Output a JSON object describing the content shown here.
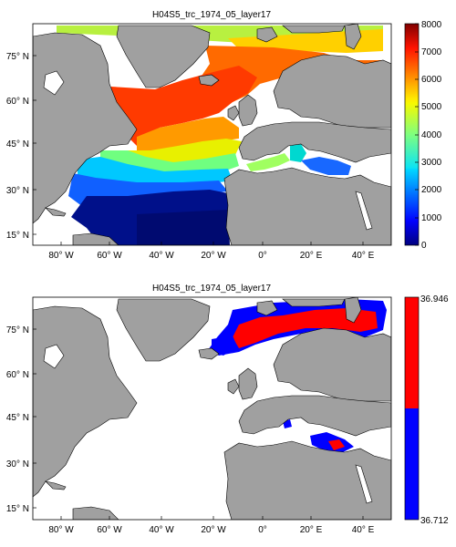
{
  "figure": {
    "background": "#ffffff",
    "land_color": "#a0a0a0",
    "ocean_color": "#ffffff"
  },
  "chart_data": [
    {
      "type": "heatmap",
      "title": "H04S5_trc_1974_05_layer17",
      "xlabel": "",
      "ylabel": "",
      "x_ticks": [
        "80° W",
        "60° W",
        "40° W",
        "20° W",
        "0°",
        "20° E",
        "40° E"
      ],
      "y_ticks": [
        "15° N",
        "30° N",
        "45° N",
        "60° N",
        "75° N"
      ],
      "colorbar": {
        "colormap": "jet",
        "range": [
          0,
          8000
        ],
        "ticks": [
          "0",
          "1000",
          "2000",
          "3000",
          "4000",
          "5000",
          "6000",
          "7000",
          "8000"
        ]
      },
      "fields": [
        {
          "region": "subtropical North Atlantic (10–30° N, 70–15° W)",
          "value_range": [
            0,
            800
          ]
        },
        {
          "region": "North Atlantic 35–45° N",
          "value_range": [
            1000,
            2500
          ]
        },
        {
          "region": "subpolar North Atlantic / Nordic Seas (50–75° N)",
          "value_range": [
            3500,
            5000
          ]
        },
        {
          "region": "Barents Sea / Arctic (75–83° N)",
          "value_range": [
            1500,
            3000
          ]
        },
        {
          "region": "western Mediterranean",
          "value_range": [
            1000,
            2500
          ]
        },
        {
          "region": "eastern Mediterranean",
          "value_range": [
            300,
            800
          ]
        }
      ]
    },
    {
      "type": "heatmap",
      "title": "H04S5_trc_1974_05_layer17",
      "xlabel": "",
      "ylabel": "",
      "x_ticks": [
        "80° W",
        "60° W",
        "40° W",
        "20° W",
        "0°",
        "20° E",
        "40° E"
      ],
      "y_ticks": [
        "15° N",
        "30° N",
        "45° N",
        "60° N",
        "75° N"
      ],
      "colorbar": {
        "colormap": [
          "#0000ff",
          "#ff0000"
        ],
        "range": [
          36.712,
          36.946
        ],
        "ticks": [
          "36.712",
          "36.946"
        ]
      },
      "fields": [
        {
          "region": "Barents Sea interior",
          "value_range": [
            36.85,
            36.946
          ],
          "color": "#ff0000"
        },
        {
          "region": "Barents Sea edges / Norwegian Sea",
          "value_range": [
            36.712,
            36.82
          ],
          "color": "#0000ff"
        },
        {
          "region": "eastern Mediterranean (Levantine)",
          "value_range": [
            36.712,
            36.946
          ],
          "color": "#ff0000"
        }
      ]
    }
  ]
}
